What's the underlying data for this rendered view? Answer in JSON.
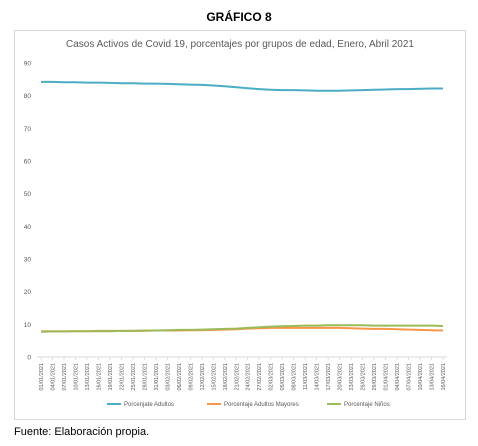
{
  "heading": "GRÁFICO 8",
  "footer": "Fuente: Elaboración propia.",
  "chart_data": {
    "type": "line",
    "title": "Casos Activos de Covid 19, porcentajes por grupos de edad, Enero, Abril 2021",
    "xlabel": "",
    "ylabel": "",
    "ylim": [
      0,
      90
    ],
    "yticks": [
      0,
      10,
      20,
      30,
      40,
      50,
      60,
      70,
      80,
      90
    ],
    "grid": false,
    "legend_position": "bottom",
    "x": [
      "01/01/2021",
      "04/01/2021",
      "07/01/2021",
      "10/01/2021",
      "13/01/2021",
      "16/01/2021",
      "19/01/2021",
      "22/01/2021",
      "25/01/2021",
      "28/01/2021",
      "31/01/2021",
      "03/02/2021",
      "06/02/2021",
      "09/02/2021",
      "12/02/2021",
      "15/02/2021",
      "18/02/2021",
      "21/02/2021",
      "24/02/2021",
      "27/02/2021",
      "02/03/2021",
      "05/03/2021",
      "08/03/2021",
      "11/03/2021",
      "14/03/2021",
      "17/03/2021",
      "20/03/2021",
      "23/03/2021",
      "26/03/2021",
      "29/03/2021",
      "01/04/2021",
      "04/04/2021",
      "07/04/2021",
      "10/04/2021",
      "13/04/2021",
      "16/04/2021"
    ],
    "series": [
      {
        "name": "Porcenjate Adultos",
        "color": "#4bacc6",
        "values": [
          84.2,
          84.2,
          84.1,
          84.1,
          84.0,
          84.0,
          83.9,
          83.8,
          83.8,
          83.7,
          83.7,
          83.6,
          83.5,
          83.4,
          83.3,
          83.1,
          82.9,
          82.6,
          82.3,
          82.0,
          81.8,
          81.7,
          81.7,
          81.6,
          81.5,
          81.5,
          81.5,
          81.6,
          81.7,
          81.8,
          81.9,
          82.0,
          82.0,
          82.1,
          82.2,
          82.2
        ]
      },
      {
        "name": "Porcentaje Adultos Mayores",
        "color": "#f79646",
        "values": [
          7.9,
          7.9,
          7.9,
          7.9,
          7.9,
          8.0,
          8.0,
          8.0,
          8.0,
          8.0,
          8.1,
          8.1,
          8.1,
          8.2,
          8.2,
          8.3,
          8.4,
          8.5,
          8.7,
          8.8,
          8.9,
          8.9,
          8.9,
          8.9,
          8.9,
          8.9,
          8.9,
          8.8,
          8.7,
          8.6,
          8.6,
          8.5,
          8.4,
          8.3,
          8.2,
          8.1
        ]
      },
      {
        "name": "Porcentaje Niños",
        "color": "#9bbb59",
        "values": [
          7.7,
          7.8,
          7.8,
          7.9,
          7.9,
          7.9,
          7.9,
          8.0,
          8.0,
          8.1,
          8.1,
          8.2,
          8.3,
          8.3,
          8.4,
          8.5,
          8.6,
          8.7,
          8.9,
          9.1,
          9.3,
          9.4,
          9.5,
          9.6,
          9.6,
          9.7,
          9.7,
          9.7,
          9.7,
          9.6,
          9.6,
          9.6,
          9.6,
          9.6,
          9.6,
          9.5
        ]
      }
    ]
  }
}
